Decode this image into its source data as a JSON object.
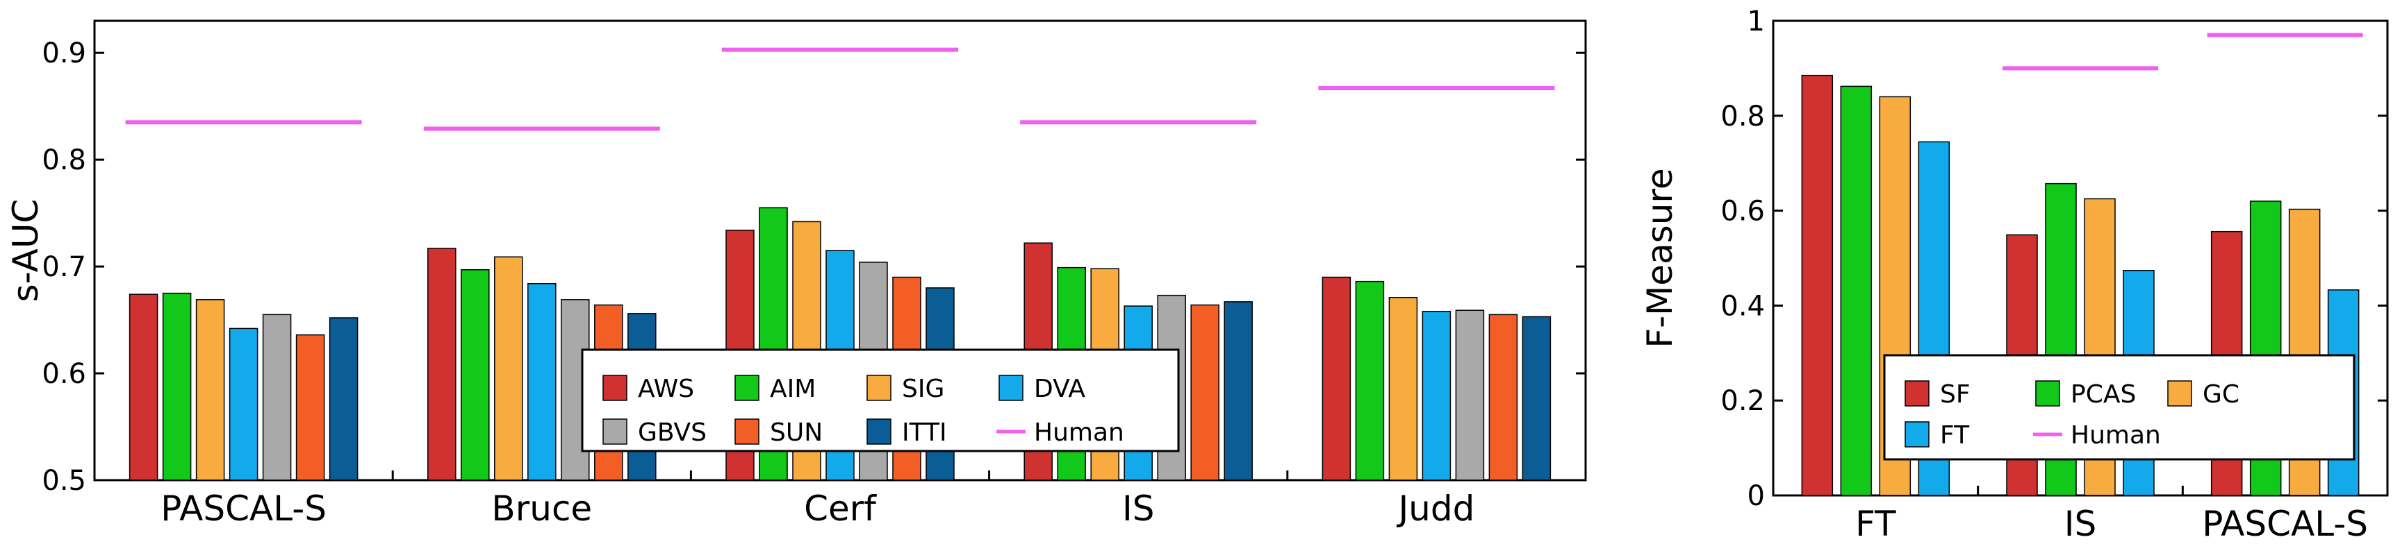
{
  "chart_data": [
    {
      "type": "bar",
      "ylabel": "s-AUC",
      "ylim": [
        0.5,
        0.93
      ],
      "yticks": [
        "0.5",
        "0.6",
        "0.7",
        "0.8",
        "0.9"
      ],
      "grid": false,
      "legend_position": "bottom-center",
      "categories": [
        "PASCAL-S",
        "Bruce",
        "Cerf",
        "IS",
        "Judd"
      ],
      "series": [
        {
          "name": "AWS",
          "color": "#d03232",
          "values": [
            0.674,
            0.717,
            0.734,
            0.722,
            0.69
          ]
        },
        {
          "name": "AIM",
          "color": "#12c818",
          "values": [
            0.675,
            0.697,
            0.755,
            0.699,
            0.686
          ]
        },
        {
          "name": "SIG",
          "color": "#f8ac40",
          "values": [
            0.669,
            0.709,
            0.742,
            0.698,
            0.671
          ]
        },
        {
          "name": "DVA",
          "color": "#12aaeb",
          "values": [
            0.642,
            0.684,
            0.715,
            0.663,
            0.658
          ]
        },
        {
          "name": "GBVS",
          "color": "#a9a9a9",
          "values": [
            0.655,
            0.669,
            0.704,
            0.673,
            0.659
          ]
        },
        {
          "name": "SUN",
          "color": "#f25e26",
          "values": [
            0.636,
            0.664,
            0.69,
            0.664,
            0.655
          ]
        },
        {
          "name": "ITTI",
          "color": "#0b5d95",
          "values": [
            0.652,
            0.656,
            0.68,
            0.667,
            0.653
          ]
        }
      ],
      "human": {
        "name": "Human",
        "color": "#f060f0",
        "values": [
          0.835,
          0.829,
          0.903,
          0.835,
          0.867
        ]
      },
      "legend_order": [
        "AWS",
        "AIM",
        "SIG",
        "DVA",
        "GBVS",
        "SUN",
        "ITTI",
        "Human"
      ]
    },
    {
      "type": "bar",
      "ylabel": "F-Measure",
      "ylim": [
        0,
        1
      ],
      "yticks": [
        "0",
        "0.2",
        "0.4",
        "0.6",
        "0.8",
        "1"
      ],
      "grid": false,
      "legend_position": "bottom-center",
      "categories": [
        "FT",
        "IS",
        "PASCAL-S"
      ],
      "series": [
        {
          "name": "SF",
          "color": "#d03232",
          "values": [
            0.885,
            0.549,
            0.556
          ]
        },
        {
          "name": "PCAS",
          "color": "#12c818",
          "values": [
            0.862,
            0.657,
            0.62
          ]
        },
        {
          "name": "GC",
          "color": "#f8ac40",
          "values": [
            0.84,
            0.625,
            0.603
          ]
        },
        {
          "name": "FT",
          "color": "#12aaeb",
          "values": [
            0.745,
            0.474,
            0.433
          ]
        }
      ],
      "human": {
        "name": "Human",
        "color": "#f060f0",
        "values": [
          null,
          0.9,
          0.97
        ]
      },
      "legend_order": [
        "SF",
        "PCAS",
        "GC",
        "FT",
        "Human"
      ]
    }
  ]
}
